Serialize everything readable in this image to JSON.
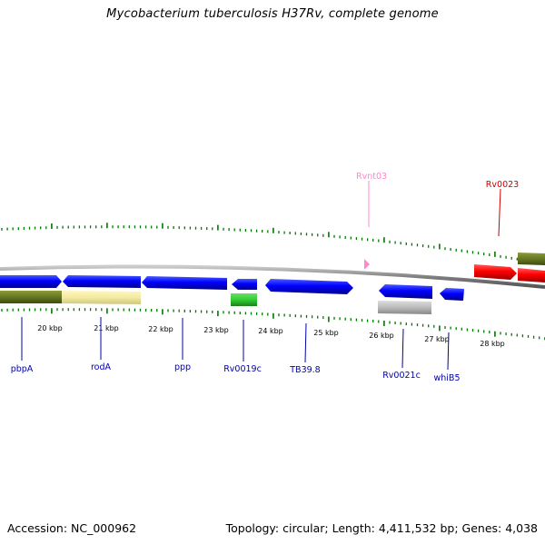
{
  "title": "Mycobacterium tuberculosis H37Rv, complete genome",
  "accession": "Accession: NC_000962",
  "summary": "Topology: circular; Length: 4,411,532 bp; Genes: 4,038",
  "colors": {
    "forward_cds": "#ff0000",
    "reverse_cds": "#0000ff",
    "repeat_region": "#ff88cc",
    "tick": "#007700",
    "backbone": "#888888",
    "feature_olive": "#667722",
    "feature_pale_yellow": "#f3eba0",
    "feature_green": "#33cc33",
    "feature_grey": "#bbbbbb"
  },
  "scale_labels": [
    "20 kbp",
    "21 kbp",
    "22 kbp",
    "23 kbp",
    "24 kbp",
    "25 kbp",
    "26 kbp",
    "27 kbp",
    "28 kbp"
  ],
  "gene_labels": [
    {
      "text": "Rvnt03",
      "color": "#ff88cc",
      "side": "above"
    },
    {
      "text": "Rv0023",
      "color": "#cc0000",
      "side": "above"
    },
    {
      "text": "pbpA",
      "color": "#0000aa",
      "side": "below"
    },
    {
      "text": "rodA",
      "color": "#0000aa",
      "side": "below"
    },
    {
      "text": "ppp",
      "color": "#0000aa",
      "side": "below"
    },
    {
      "text": "Rv0019c",
      "color": "#0000aa",
      "side": "below"
    },
    {
      "text": "TB39.8",
      "color": "#0000aa",
      "side": "below"
    },
    {
      "text": "Rv0021c",
      "color": "#0000aa",
      "side": "below"
    },
    {
      "text": "whiB5",
      "color": "#0000aa",
      "side": "below"
    }
  ]
}
